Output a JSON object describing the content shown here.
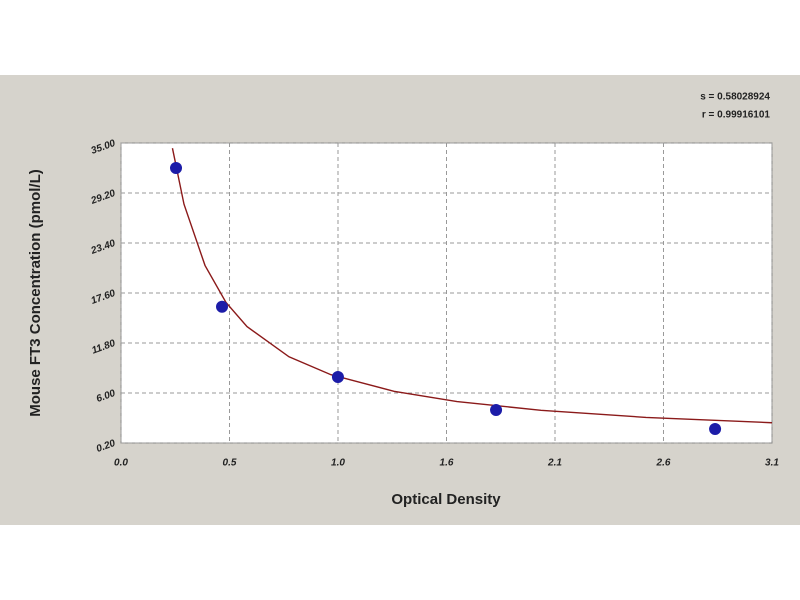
{
  "chart_data": {
    "type": "scatter",
    "xlabel": "Optical Density",
    "ylabel": "Mouse FT3 Concentration (pmol/L)",
    "annotations": [
      "s = 0.58028924",
      "r = 0.99916101"
    ],
    "xlim": [
      0,
      3.1
    ],
    "ylim": [
      0.2,
      35
    ],
    "xticks": [
      {
        "value": 0,
        "label": "0.0"
      },
      {
        "value": 0.5167,
        "label": "0.5"
      },
      {
        "value": 1.0333,
        "label": "1.0"
      },
      {
        "value": 1.55,
        "label": "1.6"
      },
      {
        "value": 2.0667,
        "label": "2.1"
      },
      {
        "value": 2.5833,
        "label": "2.6"
      },
      {
        "value": 3.1,
        "label": "3.1"
      }
    ],
    "yticks": [
      {
        "value": 0.2,
        "label": "0.20"
      },
      {
        "value": 6.0,
        "label": "6.00"
      },
      {
        "value": 11.8,
        "label": "11.80"
      },
      {
        "value": 17.6,
        "label": "17.60"
      },
      {
        "value": 23.4,
        "label": "23.40"
      },
      {
        "value": 29.2,
        "label": "29.20"
      },
      {
        "value": 35.0,
        "label": "35.00"
      }
    ],
    "grid": true,
    "series": [
      {
        "mode": "line",
        "color": "#8b1a1a",
        "x": [
          0.245,
          0.3,
          0.4,
          0.5,
          0.6,
          0.8,
          1.0,
          1.3,
          1.6,
          2.0,
          2.5,
          3.1
        ],
        "values": [
          34.4,
          27.9,
          20.8,
          16.5,
          13.7,
          10.2,
          8.12,
          6.2,
          5.01,
          3.99,
          3.17,
          2.55
        ]
      },
      {
        "mode": "markers",
        "color": "#1c1ca8",
        "x": [
          0.262,
          0.481,
          1.033,
          1.786,
          2.829
        ],
        "values": [
          32.1,
          16.0,
          7.86,
          4.03,
          1.82
        ]
      }
    ]
  }
}
